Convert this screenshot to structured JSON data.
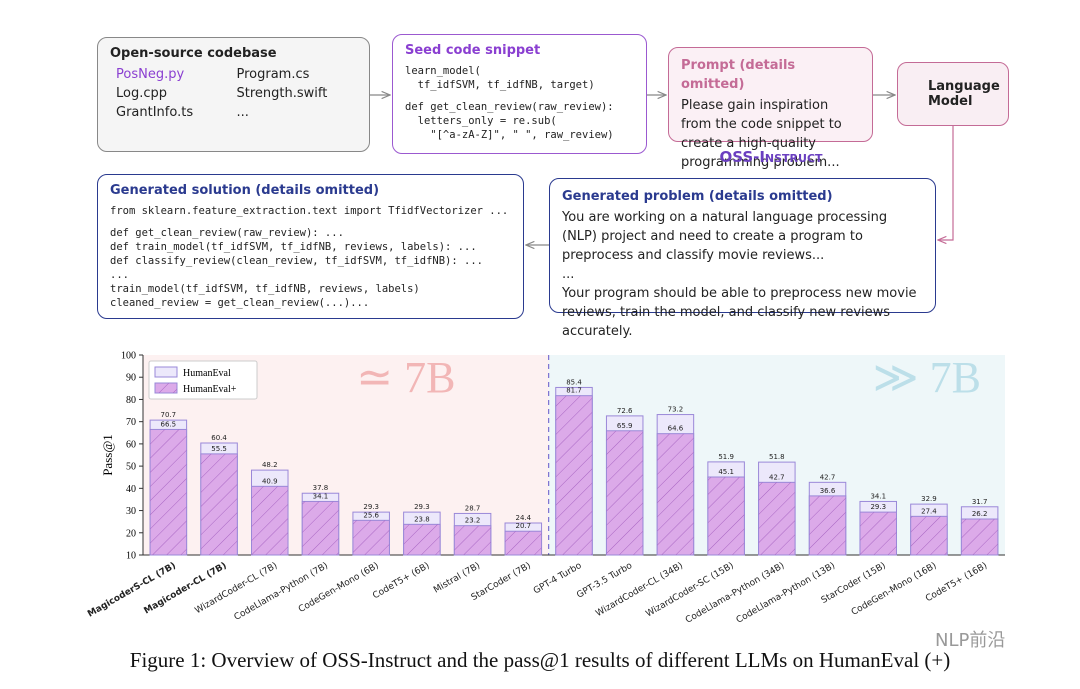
{
  "diagram": {
    "codebase": {
      "title": "Open-source codebase",
      "files": [
        "PosNeg.py",
        "Program.cs",
        "Log.cpp",
        "Strength.swift",
        "GrantInfo.ts",
        "..."
      ]
    },
    "seed": {
      "title": "Seed code snippet",
      "blocks": [
        [
          "learn_model(",
          "  tf_idfSVM, tf_idfNB, target)"
        ],
        [
          "def get_clean_review(raw_review):",
          "  letters_only = re.sub(",
          "    \"[^a-zA-Z]\", \" \", raw_review)"
        ]
      ]
    },
    "prompt": {
      "title": "Prompt (details omitted)",
      "text": "Please gain inspiration from the code snippet to create a high-quality programming problem..."
    },
    "model": {
      "title": "Language Model"
    },
    "method": "OSS-Instruct",
    "solution": {
      "title": "Generated solution (details omitted)",
      "blocks": [
        [
          "from sklearn.feature_extraction.text import TfidfVectorizer ..."
        ],
        [
          "def get_clean_review(raw_review): ...",
          "def train_model(tf_idfSVM, tf_idfNB, reviews, labels): ...",
          "def classify_review(clean_review, tf_idfSVM, tf_idfNB): ...",
          "...",
          "train_model(tf_idfSVM, tf_idfNB, reviews, labels)",
          "cleaned_review = get_clean_review(...)..."
        ]
      ]
    },
    "problem": {
      "title": "Generated problem (details omitted)",
      "paragraphs": [
        "You are working on a natural language processing (NLP) project and need to create a program to preprocess and classify movie reviews...",
        "...",
        "Your program should be able to preprocess new movie reviews, train the model, and classify new reviews accurately."
      ]
    }
  },
  "chart_data": {
    "type": "bar",
    "ylabel": "Pass@1",
    "categories": [
      "MagicoderS-CL (7B)",
      "Magicoder-CL (7B)",
      "WizardCoder-CL (7B)",
      "CodeLlama-Python (7B)",
      "CodeGen-Mono (6B)",
      "CodeT5+ (6B)",
      "Mistral (7B)",
      "StarCoder (7B)",
      "GPT-4 Turbo",
      "GPT-3.5 Turbo",
      "WizardCoder-CL (34B)",
      "WizardCoder-SC (15B)",
      "CodeLlama-Python (34B)",
      "CodeLlama-Python (13B)",
      "StarCoder (15B)",
      "CodeGen-Mono (16B)",
      "CodeT5+ (16B)"
    ],
    "series": [
      {
        "name": "HumanEval",
        "color": "#ece8fb",
        "values": [
          70.7,
          60.4,
          48.2,
          37.8,
          29.3,
          29.3,
          28.7,
          24.4,
          85.4,
          72.6,
          73.2,
          51.9,
          51.8,
          42.7,
          34.1,
          32.9,
          31.7
        ]
      },
      {
        "name": "HumanEval+",
        "color": "#dcaae9",
        "values": [
          66.5,
          55.5,
          40.9,
          34.1,
          25.6,
          23.8,
          23.2,
          20.7,
          81.7,
          65.9,
          64.6,
          45.1,
          42.7,
          36.6,
          29.3,
          27.4,
          26.2
        ]
      }
    ],
    "ylim": [
      10,
      100
    ],
    "yticks": [
      10,
      20,
      30,
      40,
      50,
      60,
      70,
      80,
      90,
      100
    ],
    "legend": "upper left",
    "annotations": [
      "≃ 7B",
      "≫ 7B"
    ]
  },
  "caption": "Figure 1: Overview of OSS-Instruct and the pass@1 results of different LLMs on HumanEval (+)",
  "watermark": "NLP前沿"
}
